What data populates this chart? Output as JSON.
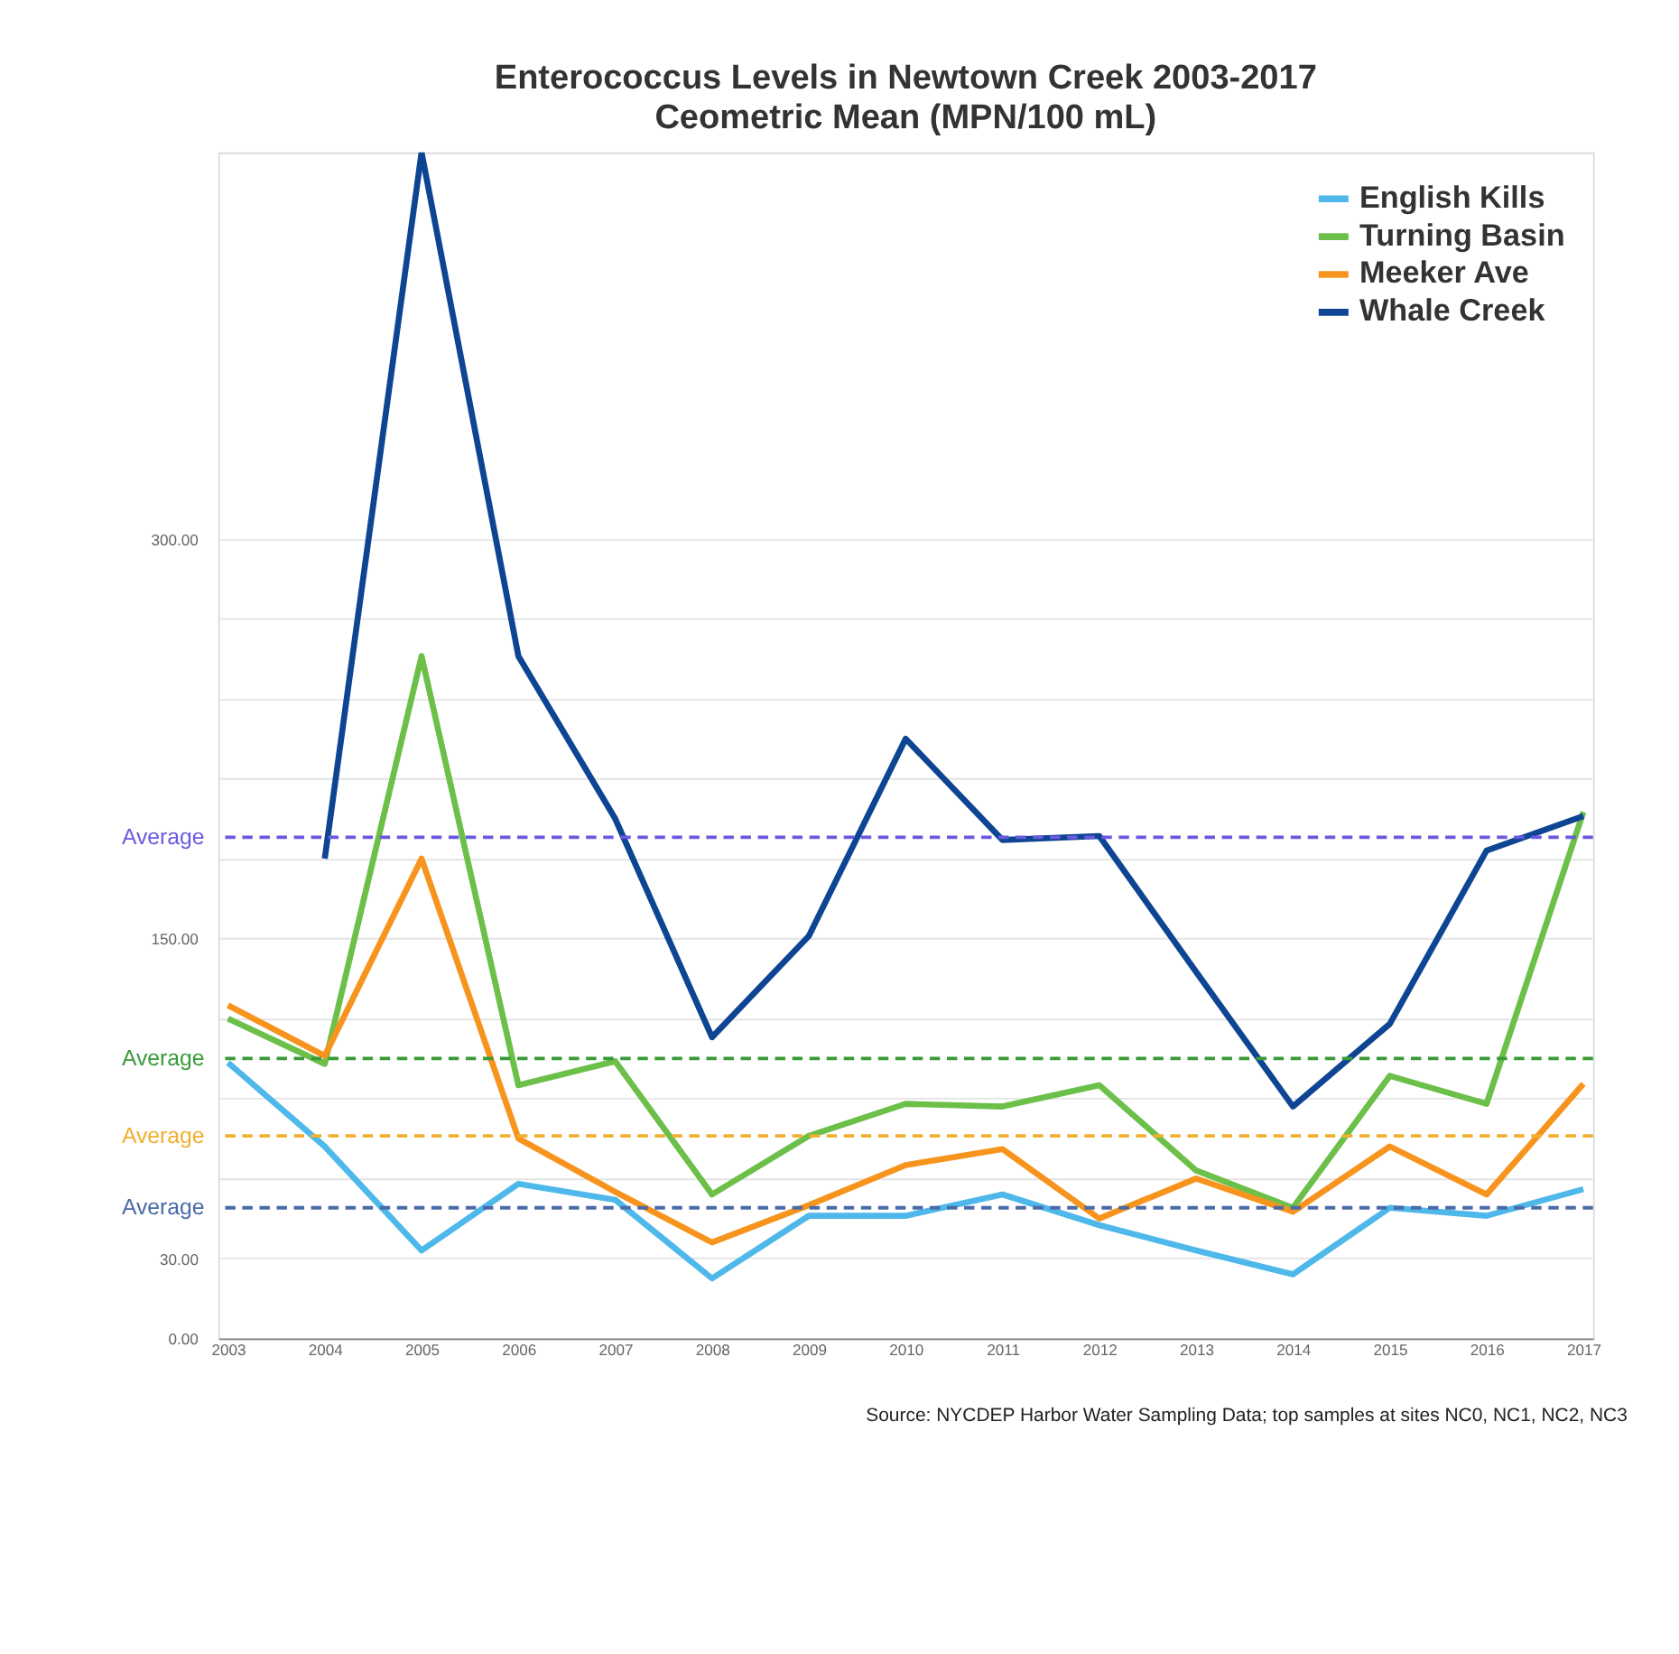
{
  "chart_data": {
    "type": "line",
    "title": "Enterococcus Levels in Newtown Creek 2003-2017",
    "subtitle": "Ceometric Mean (MPN/100 mL)",
    "categories": [
      "2003",
      "2004",
      "2005",
      "2006",
      "2007",
      "2008",
      "2009",
      "2010",
      "2011",
      "2012",
      "2013",
      "2014",
      "2015",
      "2016",
      "2017"
    ],
    "series": [
      {
        "name": "English Kills",
        "color": "#4fb8ea",
        "values": [
          103.5,
          72,
          33,
          58,
          52,
          22.5,
          46,
          46,
          54,
          42.5,
          33,
          24,
          49,
          46,
          56
        ]
      },
      {
        "name": "Turning Basin",
        "color": "#6cc04a",
        "values": [
          120,
          103,
          256,
          95,
          104,
          54,
          76,
          88,
          87,
          95,
          63,
          49,
          98.5,
          88,
          197.5
        ]
      },
      {
        "name": "Meeker Ave",
        "color": "#f7941d",
        "values": [
          125,
          106,
          180,
          75,
          55,
          36,
          50,
          65,
          71,
          45,
          60,
          47.5,
          72,
          54,
          95.5
        ]
      },
      {
        "name": "Whale Creek",
        "color": "#0d4593",
        "values": [
          null,
          180,
          445,
          256,
          195,
          113,
          151,
          225,
          187,
          188.5,
          137.5,
          87,
          118,
          183,
          196
        ]
      }
    ],
    "ylim": [
      0,
      445
    ],
    "yticks": [
      {
        "value": 0,
        "label": "0.00"
      },
      {
        "value": 30,
        "label": "30.00"
      },
      {
        "value": 60,
        "label": null
      },
      {
        "value": 90,
        "label": null
      },
      {
        "value": 120,
        "label": null
      },
      {
        "value": 150,
        "label": "150.00"
      },
      {
        "value": 180,
        "label": null
      },
      {
        "value": 210,
        "label": null
      },
      {
        "value": 240,
        "label": null
      },
      {
        "value": 270,
        "label": null
      },
      {
        "value": 300,
        "label": "300.00"
      }
    ],
    "grid": "y",
    "legend": "top right",
    "marker": "none",
    "line_style": "solid",
    "ref_lines": [
      {
        "axis": "y",
        "value": 188,
        "label": "Average",
        "color": "#6a5ae0",
        "line_style": "dashed"
      },
      {
        "axis": "y",
        "value": 105,
        "label": "Average",
        "color": "#3a9a3a",
        "line_style": "dashed"
      },
      {
        "axis": "y",
        "value": 76,
        "label": "Average",
        "color": "#f0b030",
        "line_style": "dashed"
      },
      {
        "axis": "y",
        "value": 49,
        "label": "Average",
        "color": "#4a6aa8",
        "line_style": "dashed"
      }
    ],
    "annotations": [
      "Source: NYCDEP Harbor Water Sampling Data; top samples at sites NC0, NC1, NC2, NC3"
    ]
  }
}
